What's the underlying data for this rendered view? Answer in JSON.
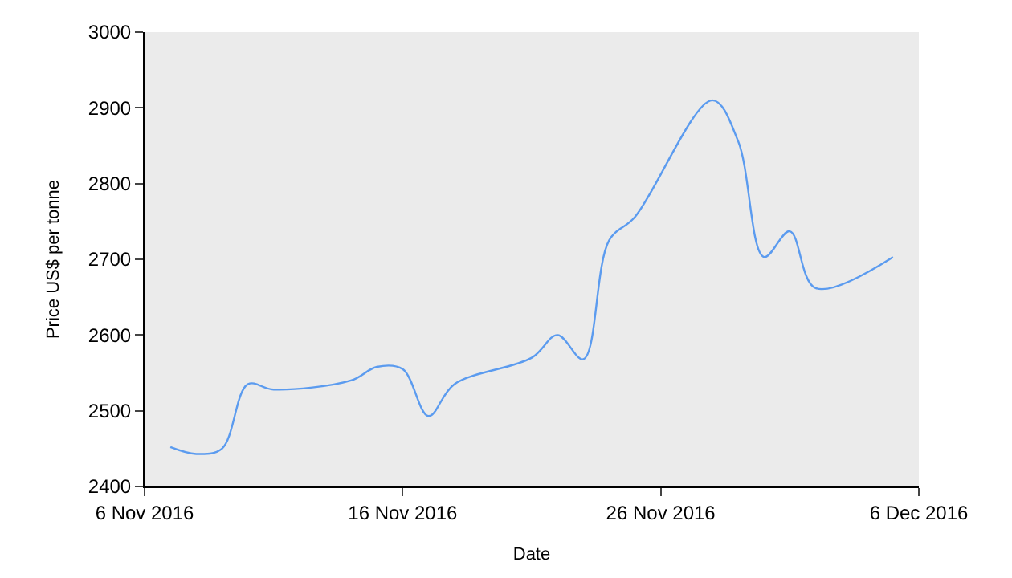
{
  "chart_data": {
    "type": "line",
    "xlabel": "Date",
    "ylabel": "Price US$ per tonne",
    "x": [
      "2016-11-07",
      "2016-11-08",
      "2016-11-09",
      "2016-11-10",
      "2016-11-11",
      "2016-11-14",
      "2016-11-15",
      "2016-11-16",
      "2016-11-17",
      "2016-11-18",
      "2016-11-21",
      "2016-11-22",
      "2016-11-23",
      "2016-11-24",
      "2016-11-25",
      "2016-11-28",
      "2016-11-29",
      "2016-11-30",
      "2016-12-01",
      "2016-12-02",
      "2016-12-05"
    ],
    "series": [
      {
        "color": "#5b9bef",
        "values": [
          2452,
          2443,
          2450,
          2535,
          2528,
          2540,
          2558,
          2555,
          2493,
          2535,
          2570,
          2600,
          2568,
          2725,
          2756,
          2910,
          2856,
          2703,
          2737,
          2662,
          2703
        ]
      }
    ],
    "xlim": [
      "2016-11-06",
      "2016-12-06"
    ],
    "xticks": [
      {
        "value": "2016-11-06",
        "label": "6 Nov 2016"
      },
      {
        "value": "2016-11-16",
        "label": "16 Nov 2016"
      },
      {
        "value": "2016-11-26",
        "label": "26 Nov 2016"
      },
      {
        "value": "2016-12-06",
        "label": "6 Dec 2016"
      }
    ],
    "ylim": [
      2400,
      3000
    ],
    "yticks": [
      2400,
      2500,
      2600,
      2700,
      2800,
      2900,
      3000
    ],
    "grid": false,
    "legend": false,
    "marker": "none",
    "line_style": "solid"
  }
}
